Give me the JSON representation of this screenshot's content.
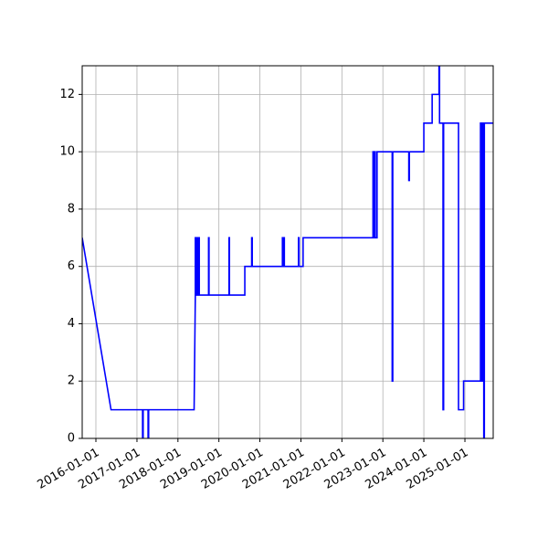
{
  "chart_data": {
    "type": "line",
    "title": "",
    "xlabel": "",
    "ylabel": "",
    "xlim": [
      "2015-09-01",
      "2025-09-10"
    ],
    "ylim": [
      0,
      13
    ],
    "grid": true,
    "x_ticks": [
      "2016-01-01",
      "2017-01-01",
      "2018-01-01",
      "2019-01-01",
      "2020-01-01",
      "2021-01-01",
      "2022-01-01",
      "2023-01-01",
      "2024-01-01",
      "2025-01-01"
    ],
    "y_ticks": [
      0,
      2,
      4,
      6,
      8,
      10,
      12
    ],
    "series": [
      {
        "color": "#0000ff",
        "points": [
          [
            "2015-09-01",
            7
          ],
          [
            "2016-05-15",
            1
          ],
          [
            "2017-02-20",
            1
          ],
          [
            "2017-02-20",
            0
          ],
          [
            "2017-02-25",
            0
          ],
          [
            "2017-02-25",
            1
          ],
          [
            "2017-04-10",
            1
          ],
          [
            "2017-04-10",
            0
          ],
          [
            "2017-04-15",
            0
          ],
          [
            "2017-04-15",
            1
          ],
          [
            "2018-05-25",
            1
          ],
          [
            "2018-06-05",
            5
          ],
          [
            "2018-06-05",
            7
          ],
          [
            "2018-06-10",
            7
          ],
          [
            "2018-06-10",
            5
          ],
          [
            "2018-06-20",
            5
          ],
          [
            "2018-06-20",
            7
          ],
          [
            "2018-06-25",
            7
          ],
          [
            "2018-06-25",
            5
          ],
          [
            "2018-07-05",
            5
          ],
          [
            "2018-07-05",
            7
          ],
          [
            "2018-07-10",
            7
          ],
          [
            "2018-07-10",
            5
          ],
          [
            "2018-10-01",
            5
          ],
          [
            "2018-10-01",
            7
          ],
          [
            "2018-10-05",
            7
          ],
          [
            "2018-10-05",
            5
          ],
          [
            "2019-04-01",
            5
          ],
          [
            "2019-04-01",
            7
          ],
          [
            "2019-04-05",
            7
          ],
          [
            "2019-04-05",
            5
          ],
          [
            "2019-08-20",
            5
          ],
          [
            "2019-08-20",
            6
          ],
          [
            "2019-10-20",
            6
          ],
          [
            "2019-10-20",
            7
          ],
          [
            "2019-10-25",
            7
          ],
          [
            "2019-10-25",
            6
          ],
          [
            "2020-07-20",
            6
          ],
          [
            "2020-07-20",
            7
          ],
          [
            "2020-07-25",
            7
          ],
          [
            "2020-07-25",
            6
          ],
          [
            "2020-08-01",
            6
          ],
          [
            "2020-08-01",
            7
          ],
          [
            "2020-08-06",
            7
          ],
          [
            "2020-08-06",
            6
          ],
          [
            "2020-12-10",
            6
          ],
          [
            "2020-12-10",
            7
          ],
          [
            "2020-12-15",
            7
          ],
          [
            "2020-12-15",
            6
          ],
          [
            "2021-01-20",
            6
          ],
          [
            "2021-01-20",
            7
          ],
          [
            "2022-10-05",
            7
          ],
          [
            "2022-10-05",
            10
          ],
          [
            "2022-10-10",
            10
          ],
          [
            "2022-10-10",
            7
          ],
          [
            "2022-10-20",
            7
          ],
          [
            "2022-10-20",
            10
          ],
          [
            "2022-10-25",
            10
          ],
          [
            "2022-10-25",
            7
          ],
          [
            "2022-11-10",
            7
          ],
          [
            "2022-11-10",
            10
          ],
          [
            "2023-03-25",
            10
          ],
          [
            "2023-03-25",
            2
          ],
          [
            "2023-03-30",
            2
          ],
          [
            "2023-03-30",
            10
          ],
          [
            "2023-08-20",
            10
          ],
          [
            "2023-08-20",
            9
          ],
          [
            "2023-08-25",
            9
          ],
          [
            "2023-08-25",
            10
          ],
          [
            "2024-01-01",
            10
          ],
          [
            "2024-01-01",
            11
          ],
          [
            "2024-03-15",
            11
          ],
          [
            "2024-03-15",
            12
          ],
          [
            "2024-05-15",
            12
          ],
          [
            "2024-05-15",
            13
          ],
          [
            "2024-05-20",
            13
          ],
          [
            "2024-05-20",
            11
          ],
          [
            "2024-06-20",
            11
          ],
          [
            "2024-06-20",
            1
          ],
          [
            "2024-06-25",
            1
          ],
          [
            "2024-06-25",
            11
          ],
          [
            "2024-11-05",
            11
          ],
          [
            "2024-11-05",
            1
          ],
          [
            "2024-12-20",
            1
          ],
          [
            "2024-12-20",
            2
          ],
          [
            "2025-05-20",
            2
          ],
          [
            "2025-05-20",
            11
          ],
          [
            "2025-05-25",
            11
          ],
          [
            "2025-05-25",
            2
          ],
          [
            "2025-06-01",
            2
          ],
          [
            "2025-06-01",
            11
          ],
          [
            "2025-06-05",
            11
          ],
          [
            "2025-06-05",
            2
          ],
          [
            "2025-06-12",
            2
          ],
          [
            "2025-06-12",
            11
          ],
          [
            "2025-06-18",
            11
          ],
          [
            "2025-06-18",
            0
          ],
          [
            "2025-06-23",
            0
          ],
          [
            "2025-06-23",
            11
          ],
          [
            "2025-09-10",
            11
          ]
        ]
      }
    ]
  }
}
